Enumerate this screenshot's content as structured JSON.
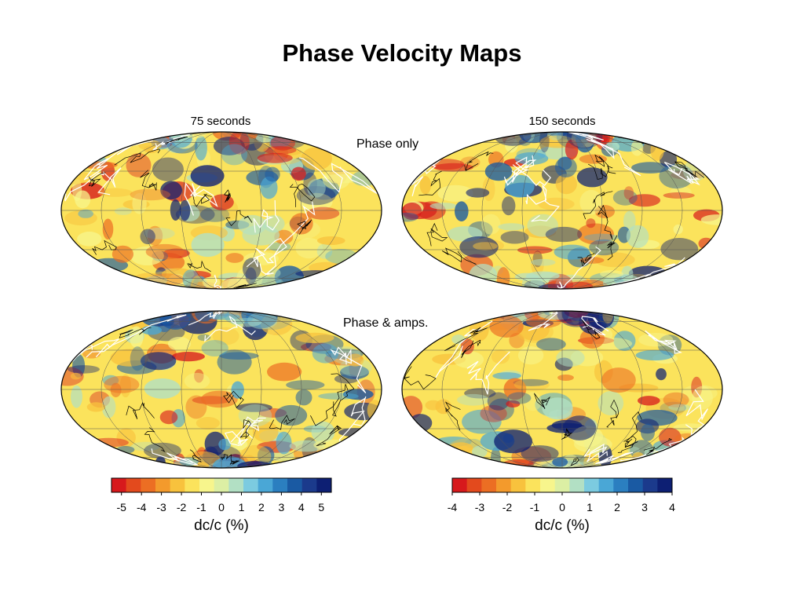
{
  "title": "Phase Velocity Maps",
  "columns": [
    "75 seconds",
    "150 seconds"
  ],
  "rows": [
    "Phase only",
    "Phase & amps."
  ],
  "maps": [
    {
      "period": "75 seconds",
      "data": "Phase only",
      "range": 5.5
    },
    {
      "period": "150 seconds",
      "data": "Phase only",
      "range": 4
    },
    {
      "period": "75 seconds",
      "data": "Phase & amps.",
      "range": 5.5
    },
    {
      "period": "150 seconds",
      "data": "Phase & amps.",
      "range": 4
    }
  ],
  "colorbars": [
    {
      "ticks": [
        "-5",
        "-4",
        "-3",
        "-2",
        "-1",
        "0",
        "1",
        "2",
        "3",
        "4",
        "5"
      ],
      "min": -5.5,
      "max": 5.5,
      "colors": [
        "#d7191c",
        "#e34a1d",
        "#ec6e23",
        "#f39a2c",
        "#f8c23d",
        "#fbe35c",
        "#f7f58c",
        "#dcefa4",
        "#b2e0c4",
        "#7ccbe0",
        "#4aa7d6",
        "#2b7fc0",
        "#1a5aa3",
        "#1b3a8c",
        "#0d1f73"
      ],
      "unit": "dc/c (%)"
    },
    {
      "ticks": [
        "-4",
        "-3",
        "-2",
        "-1",
        "0",
        "1",
        "2",
        "3",
        "4"
      ],
      "min": -4,
      "max": 4,
      "colors": [
        "#d7191c",
        "#e34a1d",
        "#ec6e23",
        "#f39a2c",
        "#f8c23d",
        "#fbe35c",
        "#f7f58c",
        "#dcefa4",
        "#b2e0c4",
        "#7ccbe0",
        "#4aa7d6",
        "#2b7fc0",
        "#1a5aa3",
        "#1b3a8c",
        "#0d1f73"
      ],
      "unit": "dc/c (%)"
    }
  ],
  "palette": {
    "neg": "#d7191c",
    "zero": "#fbe35c",
    "pos": "#0d1f73",
    "plate": "#ffffff",
    "coast": "#000000"
  }
}
